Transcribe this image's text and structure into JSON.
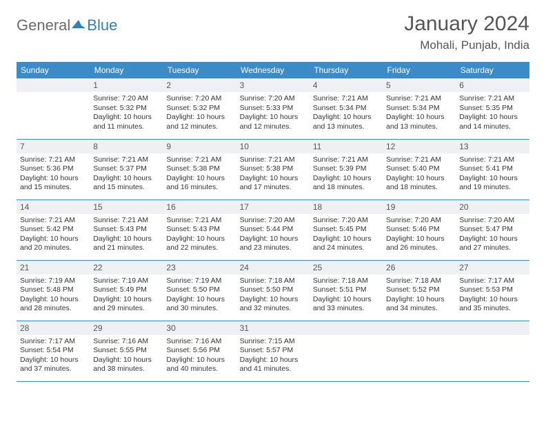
{
  "logo": {
    "text1": "General",
    "text2": "Blue"
  },
  "title": "January 2024",
  "location": "Mohali, Punjab, India",
  "colors": {
    "header_bg": "#3b8bc8",
    "header_text": "#ffffff",
    "daynum_bg": "#eef0f2",
    "border": "#3b8bc8",
    "page_bg": "#ffffff",
    "body_text": "#333333",
    "title_text": "#555555"
  },
  "typography": {
    "title_fontsize": 30,
    "location_fontsize": 17,
    "weekday_fontsize": 12,
    "cell_fontsize": 10.5
  },
  "weekdays": [
    "Sunday",
    "Monday",
    "Tuesday",
    "Wednesday",
    "Thursday",
    "Friday",
    "Saturday"
  ],
  "weeks": [
    [
      null,
      {
        "n": "1",
        "sr": "Sunrise: 7:20 AM",
        "ss": "Sunset: 5:32 PM",
        "d1": "Daylight: 10 hours",
        "d2": "and 11 minutes."
      },
      {
        "n": "2",
        "sr": "Sunrise: 7:20 AM",
        "ss": "Sunset: 5:32 PM",
        "d1": "Daylight: 10 hours",
        "d2": "and 12 minutes."
      },
      {
        "n": "3",
        "sr": "Sunrise: 7:20 AM",
        "ss": "Sunset: 5:33 PM",
        "d1": "Daylight: 10 hours",
        "d2": "and 12 minutes."
      },
      {
        "n": "4",
        "sr": "Sunrise: 7:21 AM",
        "ss": "Sunset: 5:34 PM",
        "d1": "Daylight: 10 hours",
        "d2": "and 13 minutes."
      },
      {
        "n": "5",
        "sr": "Sunrise: 7:21 AM",
        "ss": "Sunset: 5:34 PM",
        "d1": "Daylight: 10 hours",
        "d2": "and 13 minutes."
      },
      {
        "n": "6",
        "sr": "Sunrise: 7:21 AM",
        "ss": "Sunset: 5:35 PM",
        "d1": "Daylight: 10 hours",
        "d2": "and 14 minutes."
      }
    ],
    [
      {
        "n": "7",
        "sr": "Sunrise: 7:21 AM",
        "ss": "Sunset: 5:36 PM",
        "d1": "Daylight: 10 hours",
        "d2": "and 15 minutes."
      },
      {
        "n": "8",
        "sr": "Sunrise: 7:21 AM",
        "ss": "Sunset: 5:37 PM",
        "d1": "Daylight: 10 hours",
        "d2": "and 15 minutes."
      },
      {
        "n": "9",
        "sr": "Sunrise: 7:21 AM",
        "ss": "Sunset: 5:38 PM",
        "d1": "Daylight: 10 hours",
        "d2": "and 16 minutes."
      },
      {
        "n": "10",
        "sr": "Sunrise: 7:21 AM",
        "ss": "Sunset: 5:38 PM",
        "d1": "Daylight: 10 hours",
        "d2": "and 17 minutes."
      },
      {
        "n": "11",
        "sr": "Sunrise: 7:21 AM",
        "ss": "Sunset: 5:39 PM",
        "d1": "Daylight: 10 hours",
        "d2": "and 18 minutes."
      },
      {
        "n": "12",
        "sr": "Sunrise: 7:21 AM",
        "ss": "Sunset: 5:40 PM",
        "d1": "Daylight: 10 hours",
        "d2": "and 18 minutes."
      },
      {
        "n": "13",
        "sr": "Sunrise: 7:21 AM",
        "ss": "Sunset: 5:41 PM",
        "d1": "Daylight: 10 hours",
        "d2": "and 19 minutes."
      }
    ],
    [
      {
        "n": "14",
        "sr": "Sunrise: 7:21 AM",
        "ss": "Sunset: 5:42 PM",
        "d1": "Daylight: 10 hours",
        "d2": "and 20 minutes."
      },
      {
        "n": "15",
        "sr": "Sunrise: 7:21 AM",
        "ss": "Sunset: 5:43 PM",
        "d1": "Daylight: 10 hours",
        "d2": "and 21 minutes."
      },
      {
        "n": "16",
        "sr": "Sunrise: 7:21 AM",
        "ss": "Sunset: 5:43 PM",
        "d1": "Daylight: 10 hours",
        "d2": "and 22 minutes."
      },
      {
        "n": "17",
        "sr": "Sunrise: 7:20 AM",
        "ss": "Sunset: 5:44 PM",
        "d1": "Daylight: 10 hours",
        "d2": "and 23 minutes."
      },
      {
        "n": "18",
        "sr": "Sunrise: 7:20 AM",
        "ss": "Sunset: 5:45 PM",
        "d1": "Daylight: 10 hours",
        "d2": "and 24 minutes."
      },
      {
        "n": "19",
        "sr": "Sunrise: 7:20 AM",
        "ss": "Sunset: 5:46 PM",
        "d1": "Daylight: 10 hours",
        "d2": "and 26 minutes."
      },
      {
        "n": "20",
        "sr": "Sunrise: 7:20 AM",
        "ss": "Sunset: 5:47 PM",
        "d1": "Daylight: 10 hours",
        "d2": "and 27 minutes."
      }
    ],
    [
      {
        "n": "21",
        "sr": "Sunrise: 7:19 AM",
        "ss": "Sunset: 5:48 PM",
        "d1": "Daylight: 10 hours",
        "d2": "and 28 minutes."
      },
      {
        "n": "22",
        "sr": "Sunrise: 7:19 AM",
        "ss": "Sunset: 5:49 PM",
        "d1": "Daylight: 10 hours",
        "d2": "and 29 minutes."
      },
      {
        "n": "23",
        "sr": "Sunrise: 7:19 AM",
        "ss": "Sunset: 5:50 PM",
        "d1": "Daylight: 10 hours",
        "d2": "and 30 minutes."
      },
      {
        "n": "24",
        "sr": "Sunrise: 7:18 AM",
        "ss": "Sunset: 5:50 PM",
        "d1": "Daylight: 10 hours",
        "d2": "and 32 minutes."
      },
      {
        "n": "25",
        "sr": "Sunrise: 7:18 AM",
        "ss": "Sunset: 5:51 PM",
        "d1": "Daylight: 10 hours",
        "d2": "and 33 minutes."
      },
      {
        "n": "26",
        "sr": "Sunrise: 7:18 AM",
        "ss": "Sunset: 5:52 PM",
        "d1": "Daylight: 10 hours",
        "d2": "and 34 minutes."
      },
      {
        "n": "27",
        "sr": "Sunrise: 7:17 AM",
        "ss": "Sunset: 5:53 PM",
        "d1": "Daylight: 10 hours",
        "d2": "and 35 minutes."
      }
    ],
    [
      {
        "n": "28",
        "sr": "Sunrise: 7:17 AM",
        "ss": "Sunset: 5:54 PM",
        "d1": "Daylight: 10 hours",
        "d2": "and 37 minutes."
      },
      {
        "n": "29",
        "sr": "Sunrise: 7:16 AM",
        "ss": "Sunset: 5:55 PM",
        "d1": "Daylight: 10 hours",
        "d2": "and 38 minutes."
      },
      {
        "n": "30",
        "sr": "Sunrise: 7:16 AM",
        "ss": "Sunset: 5:56 PM",
        "d1": "Daylight: 10 hours",
        "d2": "and 40 minutes."
      },
      {
        "n": "31",
        "sr": "Sunrise: 7:15 AM",
        "ss": "Sunset: 5:57 PM",
        "d1": "Daylight: 10 hours",
        "d2": "and 41 minutes."
      },
      null,
      null,
      null
    ]
  ]
}
